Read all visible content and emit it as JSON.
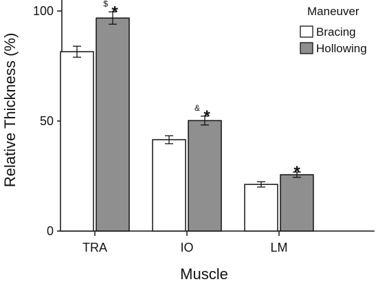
{
  "chart_data": {
    "type": "bar",
    "xlabel": "Muscle",
    "ylabel": "Relative Thickness (%)",
    "categories": [
      "TRA",
      "IO",
      "LM"
    ],
    "ylim": [
      0,
      105
    ],
    "yticks": [
      0,
      50,
      100
    ],
    "legend": {
      "title": "Maneuver",
      "position": "top-right"
    },
    "series": [
      {
        "name": "Bracing",
        "color": "#ffffff",
        "values": [
          81.5,
          41.5,
          21.2
        ],
        "errors": [
          2.5,
          1.8,
          1.2
        ]
      },
      {
        "name": "Hollowing",
        "color": "#8f8f8f",
        "values": [
          96.8,
          50.2,
          25.6
        ],
        "errors": [
          2.8,
          2.0,
          1.2
        ]
      }
    ],
    "annotations": [
      {
        "category_index": 0,
        "series_index": 1,
        "small": "$",
        "big": "*"
      },
      {
        "category_index": 1,
        "series_index": 1,
        "small": "&",
        "big": "*"
      },
      {
        "category_index": 2,
        "series_index": 1,
        "small": "",
        "big": "*"
      }
    ]
  }
}
